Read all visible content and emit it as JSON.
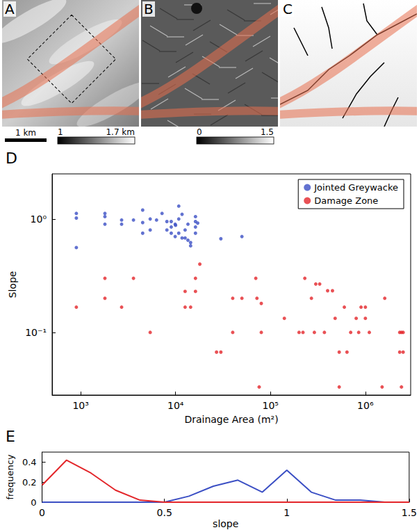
{
  "image_panels": [
    {
      "letter": "A",
      "scale_bar_label": "1 km",
      "colorbar_labels": [
        "1",
        "1.7 km"
      ]
    },
    {
      "letter": "B",
      "colorbar_labels": [
        "0",
        "1.5"
      ]
    },
    {
      "letter": "C"
    }
  ],
  "chart_data": [
    {
      "panel": "D",
      "type": "scatter",
      "x_label": "Drainage Area (m²)",
      "y_label": "Slope",
      "log": true,
      "grid": false,
      "legend": "upper right",
      "marker": "circle",
      "xlim": [
        500,
        3000000
      ],
      "xticks": [
        {
          "value": 1000,
          "label": "10³"
        },
        {
          "value": 10000,
          "label": "10⁴"
        },
        {
          "value": 100000,
          "label": "10⁵"
        },
        {
          "value": 1000000,
          "label": "10⁶"
        }
      ],
      "ylim": [
        0.028,
        2.5
      ],
      "yticks": [
        {
          "value": 0.1,
          "label": "10⁻¹"
        },
        {
          "value": 1,
          "label": "10⁰"
        }
      ],
      "series": [
        {
          "name": "Jointed Greywacke",
          "color": "#3b4fc4",
          "x": [
            900,
            900,
            900,
            1800,
            1800,
            1800,
            2700,
            2700,
            3600,
            4500,
            4500,
            4500,
            5400,
            5400,
            6300,
            7200,
            8100,
            8100,
            9000,
            9000,
            9000,
            9900,
            9900,
            10000,
            10800,
            10800,
            10800,
            11700,
            11700,
            12600,
            12600,
            13500,
            13500,
            14400,
            14400,
            16200,
            16200,
            16200,
            16200,
            17100,
            30000,
            50000
          ],
          "values": [
            1.12,
            1.02,
            0.56,
            1.12,
            1.05,
            0.9,
            0.98,
            0.9,
            0.98,
            0.93,
            1.2,
            0.75,
            1.0,
            0.8,
            0.98,
            1.12,
            0.95,
            0.8,
            0.85,
            0.75,
            0.95,
            0.9,
            0.7,
            0.88,
            1.3,
            0.75,
            1.0,
            1.1,
            0.68,
            0.8,
            0.68,
            0.9,
            0.65,
            0.58,
            0.62,
            0.95,
            0.85,
            1.05,
            0.75,
            0.92,
            0.67,
            0.7
          ]
        },
        {
          "name": "Damage Zone",
          "color": "#e3262a",
          "x": [
            900,
            1800,
            1800,
            2700,
            3600,
            5400,
            12600,
            12600,
            14400,
            16200,
            16200,
            18000,
            27000,
            30000,
            40000,
            40000,
            50000,
            70000,
            72000,
            76000,
            80000,
            80000,
            140000,
            200000,
            220000,
            230000,
            270000,
            290000,
            300000,
            330000,
            370000,
            400000,
            450000,
            480000,
            530000,
            530000,
            600000,
            640000,
            700000,
            800000,
            850000,
            900000,
            1000000,
            1000000,
            1100000,
            1500000,
            1600000,
            2300000,
            2300000,
            2400000,
            2400000,
            2500000,
            2500000
          ],
          "values": [
            0.167,
            0.3,
            0.2,
            0.167,
            0.3,
            0.1,
            0.23,
            0.167,
            0.167,
            0.3,
            0.23,
            0.4,
            0.067,
            0.067,
            0.1,
            0.2,
            0.2,
            0.3,
            0.2,
            0.033,
            0.18,
            0.1,
            0.133,
            0.1,
            0.1,
            0.3,
            0.2,
            0.1,
            0.267,
            0.267,
            0.1,
            0.233,
            0.233,
            0.133,
            0.067,
            0.033,
            0.167,
            0.067,
            0.1,
            0.133,
            0.1,
            0.167,
            0.167,
            0.133,
            0.1,
            0.033,
            0.2,
            0.1,
            0.067,
            0.033,
            0.1,
            0.067,
            0.1
          ]
        }
      ]
    },
    {
      "panel": "E",
      "type": "line",
      "x_label": "slope",
      "y_label": "frequency",
      "grid": false,
      "x": [
        0,
        0.1,
        0.2,
        0.3,
        0.4,
        0.5,
        0.6,
        0.7,
        0.8,
        0.9,
        1.0,
        1.1,
        1.2,
        1.3,
        1.4,
        1.5
      ],
      "xlim": [
        0,
        1.5
      ],
      "xticks": [
        0,
        0.5,
        1,
        1.5
      ],
      "ylim": [
        0,
        0.5
      ],
      "yticks": [
        0,
        0.2,
        0.4
      ],
      "series": [
        {
          "color": "#3b4fc4",
          "values": [
            0,
            0,
            0,
            0,
            0,
            0,
            0.06,
            0.16,
            0.22,
            0.1,
            0.32,
            0.1,
            0.02,
            0.02,
            0,
            0
          ]
        },
        {
          "color": "#e3262a",
          "values": [
            0.17,
            0.42,
            0.29,
            0.12,
            0.02,
            0,
            0,
            0,
            0,
            0,
            0,
            0,
            0,
            0,
            0,
            0
          ]
        }
      ]
    }
  ]
}
